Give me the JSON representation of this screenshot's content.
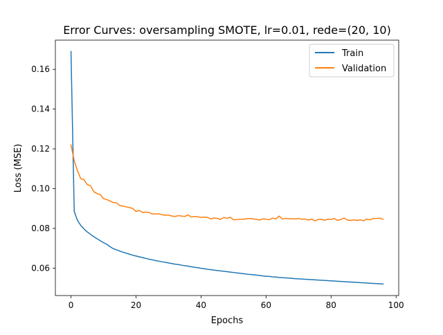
{
  "chart_data": {
    "type": "line",
    "title": "Error Curves: oversampling SMOTE, lr=0.01, rede=(20, 10)",
    "xlabel": "Epochs",
    "ylabel": "Loss (MSE)",
    "xlim": [
      -4.8,
      100.8
    ],
    "ylim": [
      0.0462,
      0.1747
    ],
    "xticks": [
      0,
      20,
      40,
      60,
      80,
      100
    ],
    "yticks": [
      0.06,
      0.08,
      0.1,
      0.12,
      0.14,
      0.16
    ],
    "ytick_labels": [
      "0.06",
      "0.08",
      "0.10",
      "0.12",
      "0.14",
      "0.16"
    ],
    "grid": false,
    "legend_position": "top-right",
    "series": [
      {
        "name": "Train",
        "color": "#1f77b4",
        "x": [
          0,
          1,
          2,
          3,
          4,
          5,
          6,
          7,
          8,
          9,
          10,
          11,
          12,
          13,
          14,
          15,
          16,
          17,
          18,
          19,
          20,
          21,
          22,
          23,
          24,
          25,
          26,
          27,
          28,
          29,
          30,
          31,
          32,
          33,
          34,
          35,
          36,
          37,
          38,
          39,
          40,
          41,
          42,
          43,
          44,
          45,
          46,
          47,
          48,
          49,
          50,
          51,
          52,
          53,
          54,
          55,
          56,
          57,
          58,
          59,
          60,
          61,
          62,
          63,
          64,
          65,
          66,
          67,
          68,
          69,
          70,
          71,
          72,
          73,
          74,
          75,
          76,
          77,
          78,
          79,
          80,
          81,
          82,
          83,
          84,
          85,
          86,
          87,
          88,
          89,
          90,
          91,
          92,
          93,
          94,
          95,
          96
        ],
        "y": [
          0.169,
          0.0885,
          0.084,
          0.0815,
          0.0797,
          0.0782,
          0.077,
          0.0758,
          0.0748,
          0.0738,
          0.0728,
          0.072,
          0.0708,
          0.0698,
          0.0692,
          0.0686,
          0.068,
          0.0675,
          0.067,
          0.0665,
          0.0661,
          0.0657,
          0.0653,
          0.0649,
          0.0645,
          0.0642,
          0.0638,
          0.0635,
          0.0632,
          0.0629,
          0.0626,
          0.0623,
          0.062,
          0.0618,
          0.0615,
          0.0612,
          0.061,
          0.0607,
          0.0604,
          0.0602,
          0.0599,
          0.0597,
          0.0594,
          0.0592,
          0.059,
          0.0588,
          0.0586,
          0.0584,
          0.0582,
          0.058,
          0.0578,
          0.0576,
          0.0574,
          0.0572,
          0.057,
          0.0568,
          0.0567,
          0.0565,
          0.0563,
          0.0561,
          0.0559,
          0.0558,
          0.0556,
          0.0555,
          0.0553,
          0.0552,
          0.0551,
          0.055,
          0.0548,
          0.0547,
          0.0546,
          0.0545,
          0.0544,
          0.0543,
          0.0542,
          0.0541,
          0.054,
          0.0539,
          0.0538,
          0.0537,
          0.0536,
          0.0535,
          0.0534,
          0.0533,
          0.0532,
          0.0531,
          0.053,
          0.0529,
          0.0528,
          0.0527,
          0.0526,
          0.0525,
          0.0524,
          0.0523,
          0.0522,
          0.0521,
          0.052
        ]
      },
      {
        "name": "Validation",
        "color": "#ff7f0e",
        "x": [
          0,
          1,
          2,
          3,
          4,
          5,
          6,
          7,
          8,
          9,
          10,
          11,
          12,
          13,
          14,
          15,
          16,
          17,
          18,
          19,
          20,
          21,
          22,
          23,
          24,
          25,
          26,
          27,
          28,
          29,
          30,
          31,
          32,
          33,
          34,
          35,
          36,
          37,
          38,
          39,
          40,
          41,
          42,
          43,
          44,
          45,
          46,
          47,
          48,
          49,
          50,
          51,
          52,
          53,
          54,
          55,
          56,
          57,
          58,
          59,
          60,
          61,
          62,
          63,
          64,
          65,
          66,
          67,
          68,
          69,
          70,
          71,
          72,
          73,
          74,
          75,
          76,
          77,
          78,
          79,
          80,
          81,
          82,
          83,
          84,
          85,
          86,
          87,
          88,
          89,
          90,
          91,
          92,
          93,
          94,
          95,
          96
        ],
        "y": [
          0.122,
          0.114,
          0.109,
          0.105,
          0.1045,
          0.102,
          0.1015,
          0.0985,
          0.0975,
          0.097,
          0.095,
          0.0945,
          0.0938,
          0.093,
          0.0928,
          0.0915,
          0.0912,
          0.0908,
          0.0905,
          0.09,
          0.0885,
          0.089,
          0.088,
          0.0882,
          0.088,
          0.0872,
          0.0873,
          0.0873,
          0.0869,
          0.0866,
          0.0867,
          0.0862,
          0.086,
          0.0864,
          0.0862,
          0.086,
          0.0868,
          0.0857,
          0.086,
          0.0858,
          0.0855,
          0.0857,
          0.0855,
          0.0848,
          0.0852,
          0.085,
          0.0845,
          0.0855,
          0.085,
          0.0856,
          0.0843,
          0.0844,
          0.0846,
          0.0846,
          0.0848,
          0.085,
          0.0848,
          0.0845,
          0.0842,
          0.0848,
          0.0846,
          0.0844,
          0.0852,
          0.0847,
          0.0862,
          0.0847,
          0.085,
          0.0849,
          0.0848,
          0.0848,
          0.085,
          0.0846,
          0.0847,
          0.0842,
          0.0846,
          0.0838,
          0.0845,
          0.0846,
          0.0841,
          0.0846,
          0.0845,
          0.085,
          0.084,
          0.0845,
          0.0852,
          0.0842,
          0.084,
          0.0843,
          0.084,
          0.0843,
          0.0838,
          0.0847,
          0.0843,
          0.085,
          0.085,
          0.0851,
          0.0846
        ]
      }
    ]
  }
}
